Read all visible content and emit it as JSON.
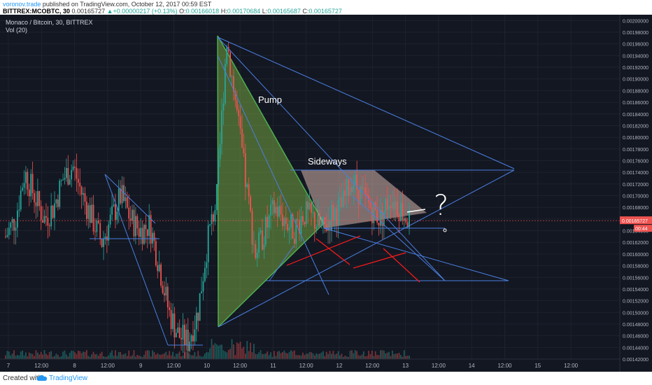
{
  "header": {
    "author": "voronov.trade",
    "published": " published on TradingView.com, October 12, 2017 00:59 EST",
    "symbol": "BITTREX:MCOBTC, 30",
    "last": "0.00165727",
    "change": "+0.00000217 (+0.13%)",
    "o_label": "O:",
    "o": "0.00166018",
    "h_label": "H:",
    "h": "0.00170684",
    "l_label": "L:",
    "l": "0.00165687",
    "c_label": "C:",
    "c": "0.00165727"
  },
  "legend": {
    "title": "Monaco / Bitcoin, 30, BITTREX",
    "volume": "Vol (20)"
  },
  "annotations": {
    "pump": "Pump",
    "sideways": "Sideways",
    "question": "?"
  },
  "price_tag": {
    "value": "0.00165727",
    "countdown": "00:44"
  },
  "footer": {
    "created": "Created with",
    "brand": "TradingView"
  },
  "colors": {
    "up": "#26a69a",
    "down": "#ef5350",
    "trendline": "#4a7fe0",
    "pump_fill": "#8bc34a",
    "sideways_fill": "#e8c4b8",
    "marker": "#ff1a1a"
  },
  "chart_data": {
    "type": "candlestick",
    "title": "Monaco / Bitcoin, 30, BITTREX",
    "ylim": [
      0.00142,
      0.00201
    ],
    "yticks": [
      "0.00200000",
      "0.00198000",
      "0.00196000",
      "0.00194000",
      "0.00192000",
      "0.00190000",
      "0.00188000",
      "0.00186000",
      "0.00184000",
      "0.00182000",
      "0.00180000",
      "0.00178000",
      "0.00176000",
      "0.00174000",
      "0.00172000",
      "0.00170000",
      "0.00168000",
      "0.00166000",
      "0.00164000",
      "0.00162000",
      "0.00160000",
      "0.00158000",
      "0.00156000",
      "0.00154000",
      "0.00152000",
      "0.00150000",
      "0.00148000",
      "0.00146000",
      "0.00144000",
      "0.00142000"
    ],
    "xticks": [
      "7",
      "12:00",
      "8",
      "12:00",
      "9",
      "12:00",
      "10",
      "12:00",
      "11",
      "12:00",
      "12",
      "12:00",
      "13",
      "12:00",
      "14",
      "12:00",
      "15",
      "12:00"
    ],
    "price_path": [
      [
        0.00163,
        0.00166,
        0.00174,
        0.0017,
        0.00166,
        0.00168,
        0.00173,
        0.00175,
        0.0017,
        0.00166,
        0.00162,
        0.00166,
        0.0017,
        0.00166,
        0.00164,
        0.00165,
        0.00158,
        0.0015,
        0.00146,
        0.00145,
        0.0015,
        0.00162,
        0.0017,
        0.00197,
        0.00185,
        0.00172,
        0.0016,
        0.00164,
        0.00168,
        0.00166,
        0.00164,
        0.00167,
        0.00166,
        0.00164,
        0.00167,
        0.00168,
        0.00173,
        0.0017,
        0.00168,
        0.00166,
        0.0017,
        0.00168,
        0.00165727
      ]
    ],
    "last_price": 0.00165727
  }
}
